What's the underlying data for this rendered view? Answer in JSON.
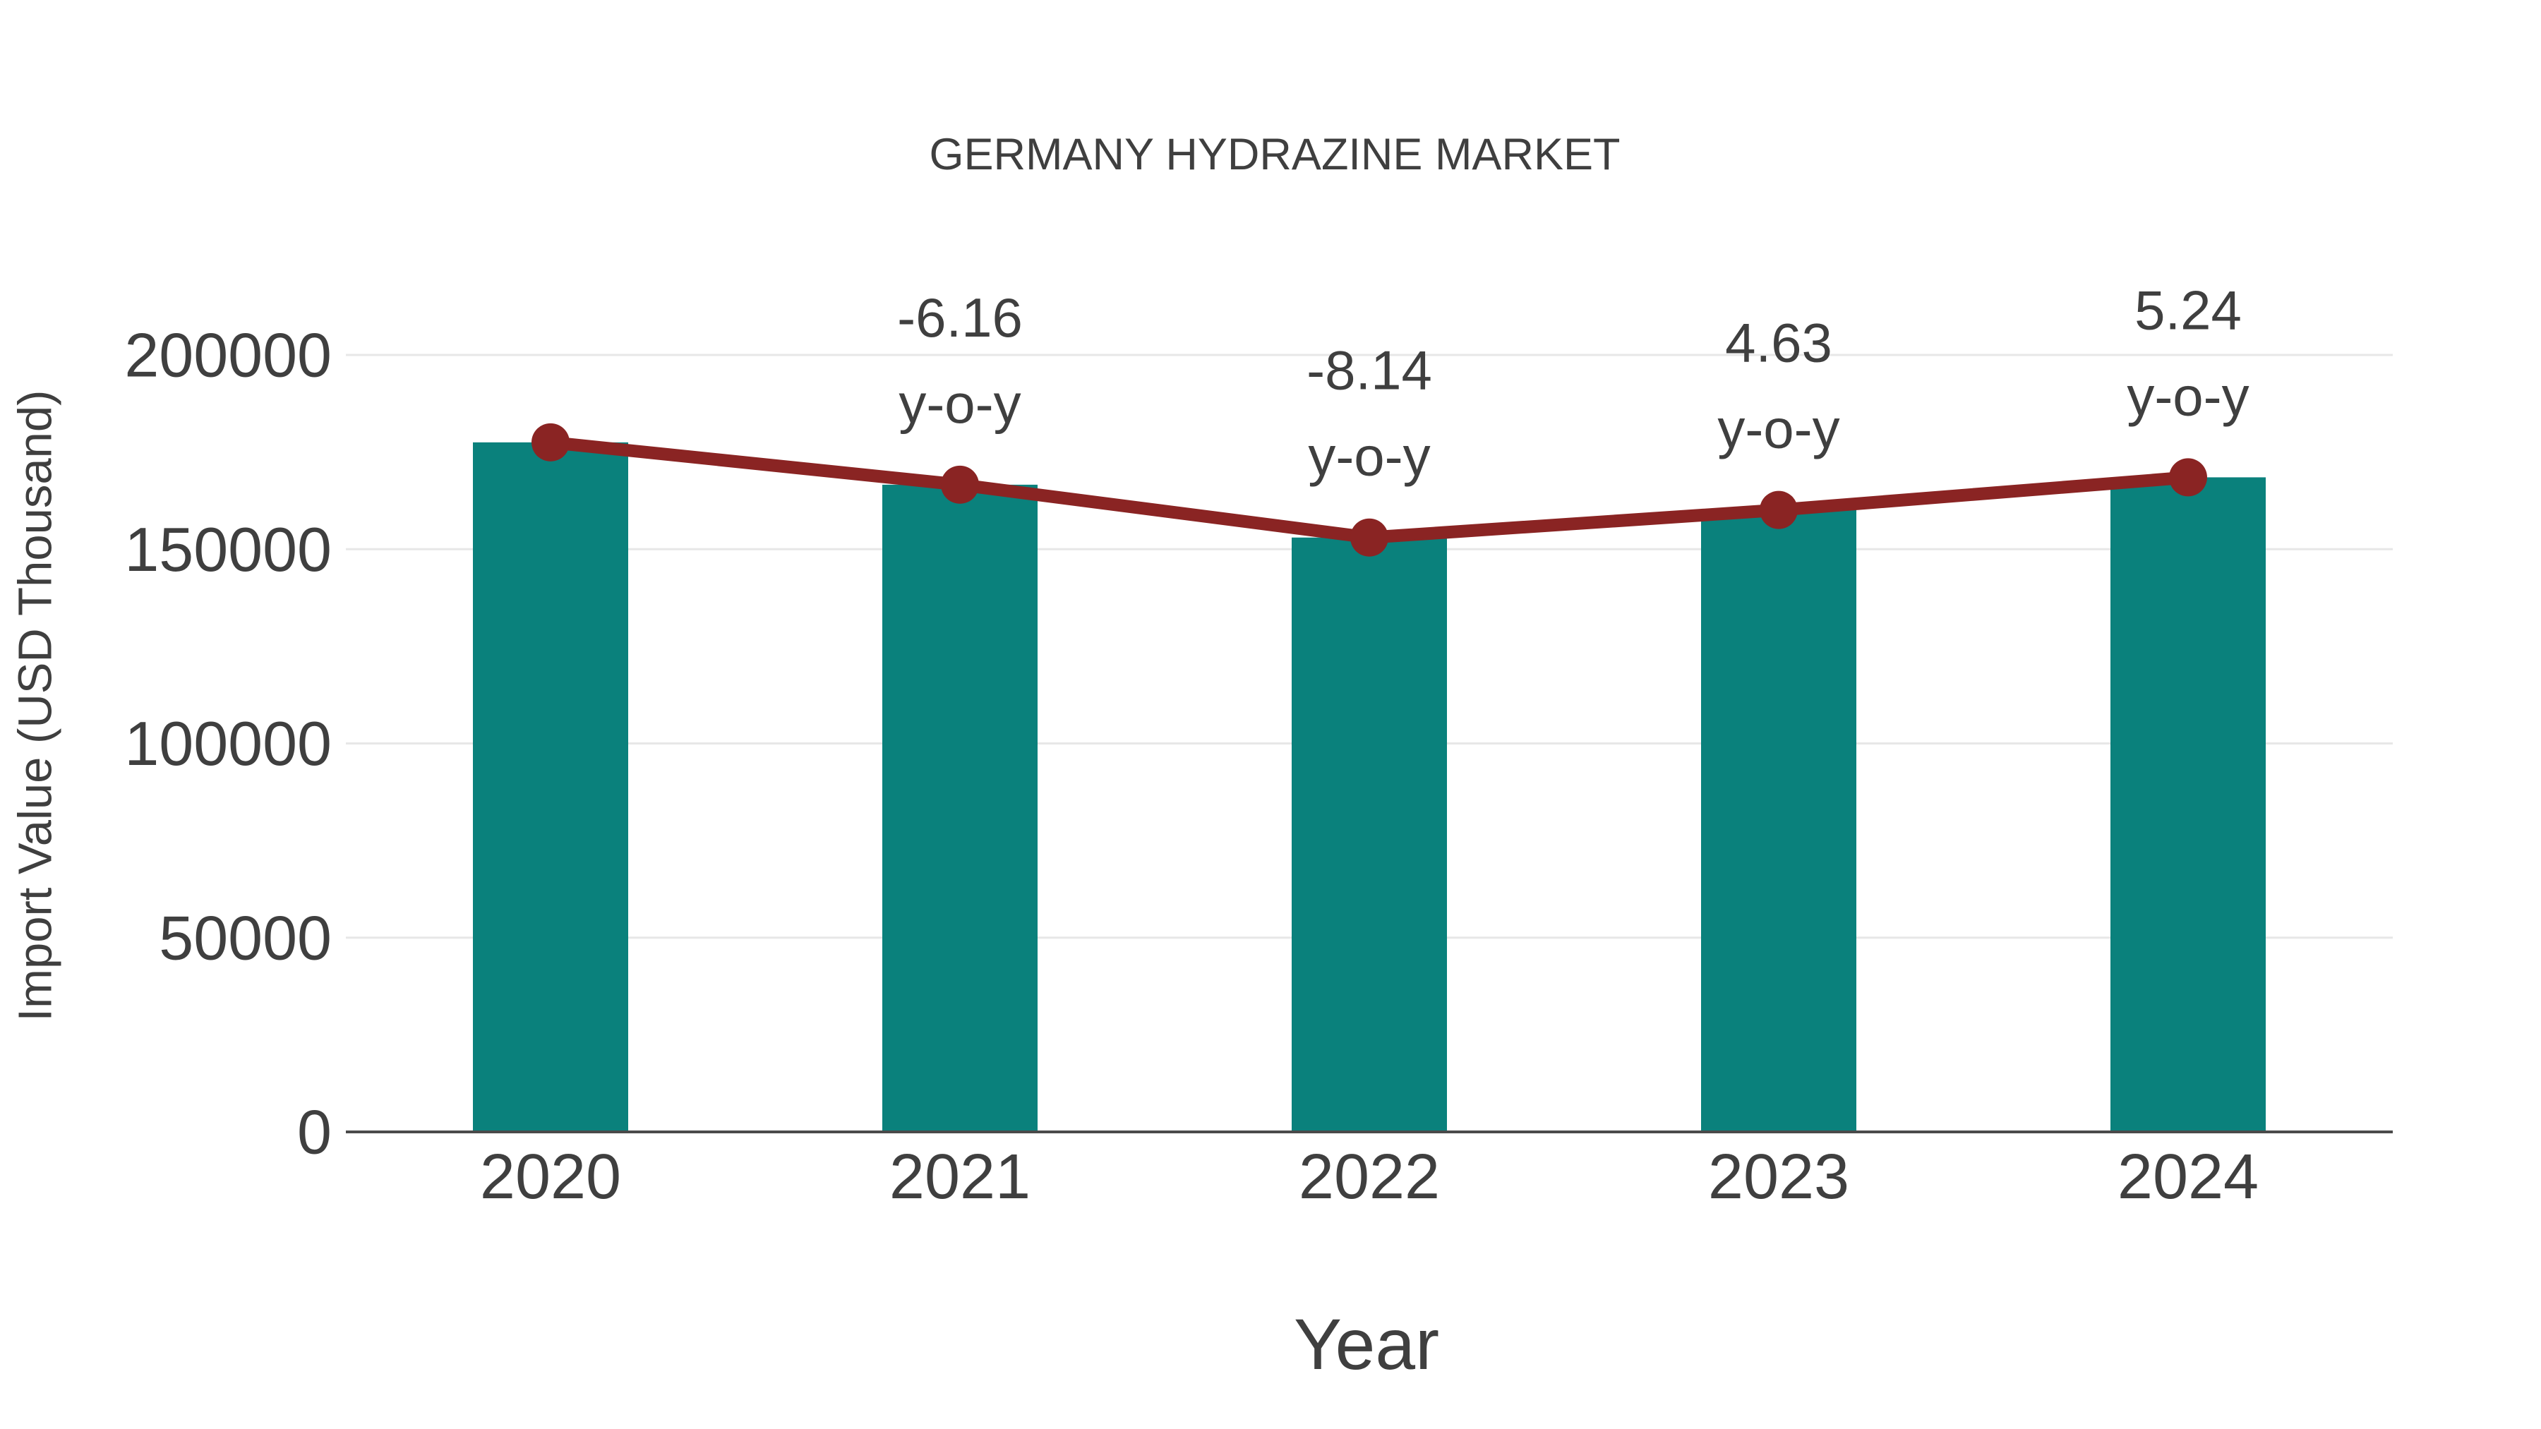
{
  "chart_data": {
    "type": "bar",
    "title": "GERMANY HYDRAZINE MARKET",
    "xlabel": "Year",
    "ylabel": "Import Value (USD Thousand)",
    "categories": [
      "2020",
      "2021",
      "2022",
      "2023",
      "2024"
    ],
    "series": [
      {
        "name": "Import Value (USD Thousand)",
        "type": "bar",
        "values": [
          177500,
          166600,
          153000,
          160100,
          168500
        ]
      },
      {
        "name": "y-o-y trend",
        "type": "line",
        "values": [
          177500,
          166600,
          153000,
          160100,
          168500
        ]
      }
    ],
    "yoy_values": [
      "",
      "-6.16",
      "-8.14",
      "4.63",
      "5.24"
    ],
    "yoy_suffix": "y-o-y",
    "ylim": [
      0,
      200000
    ],
    "yticks": [
      {
        "value": 0,
        "label": "0"
      },
      {
        "value": 50000,
        "label": "50000"
      },
      {
        "value": 100000,
        "label": "100000"
      },
      {
        "value": 150000,
        "label": "150000"
      },
      {
        "value": 200000,
        "label": "200000"
      }
    ],
    "grid": true,
    "legend": "none",
    "colors": {
      "bar": "#0A817C",
      "line": "#8A2423",
      "marker": "#8A2423",
      "text": "#3F3F3F",
      "grid": "#E7E7E7",
      "axis": "#4A4A4A",
      "background": "#FFFFFF"
    }
  }
}
